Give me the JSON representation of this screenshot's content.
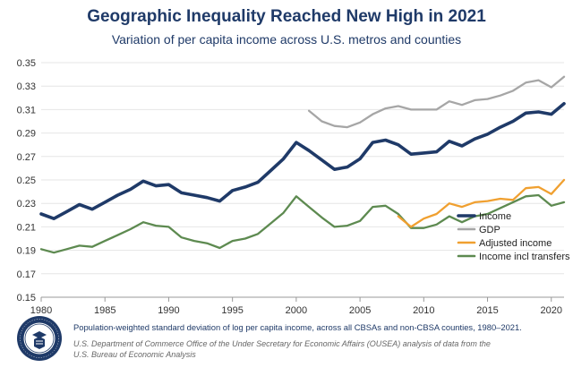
{
  "chart_data": {
    "type": "line",
    "title": "Geographic Inequality Reached New High in 2021",
    "subtitle": "Variation of per capita income across U.S. metros and counties",
    "xlabel": "",
    "ylabel": "",
    "xlim": [
      1980,
      2021
    ],
    "ylim": [
      0.15,
      0.35
    ],
    "x_ticks": [
      "1980",
      "1985",
      "1990",
      "1995",
      "2000",
      "2005",
      "2010",
      "2015",
      "2020"
    ],
    "x_tick_values": [
      1980,
      1985,
      1990,
      1995,
      2000,
      2005,
      2010,
      2015,
      2020
    ],
    "y_ticks": [
      "0.15",
      "0.17",
      "0.19",
      "0.21",
      "0.23",
      "0.25",
      "0.27",
      "0.29",
      "0.31",
      "0.33",
      "0.35"
    ],
    "y_tick_values": [
      0.15,
      0.17,
      0.19,
      0.21,
      0.23,
      0.25,
      0.27,
      0.29,
      0.31,
      0.33,
      0.35
    ],
    "grid": true,
    "legend_position": "lower-right",
    "series": [
      {
        "name": "Income",
        "color": "#1f3a68",
        "x": [
          1980,
          1981,
          1982,
          1983,
          1984,
          1985,
          1986,
          1987,
          1988,
          1989,
          1990,
          1991,
          1992,
          1993,
          1994,
          1995,
          1996,
          1997,
          1998,
          1999,
          2000,
          2001,
          2002,
          2003,
          2004,
          2005,
          2006,
          2007,
          2008,
          2009,
          2010,
          2011,
          2012,
          2013,
          2014,
          2015,
          2016,
          2017,
          2018,
          2019,
          2020,
          2021
        ],
        "values": [
          0.221,
          0.217,
          0.223,
          0.229,
          0.225,
          0.231,
          0.237,
          0.242,
          0.249,
          0.245,
          0.246,
          0.239,
          0.237,
          0.235,
          0.232,
          0.241,
          0.244,
          0.248,
          0.258,
          0.268,
          0.282,
          0.275,
          0.267,
          0.259,
          0.261,
          0.268,
          0.282,
          0.284,
          0.28,
          0.272,
          0.273,
          0.274,
          0.283,
          0.279,
          0.285,
          0.289,
          0.295,
          0.3,
          0.307,
          0.308,
          0.306,
          0.315
        ]
      },
      {
        "name": "GDP",
        "color": "#a6a6a6",
        "x": [
          2001,
          2002,
          2003,
          2004,
          2005,
          2006,
          2007,
          2008,
          2009,
          2010,
          2011,
          2012,
          2013,
          2014,
          2015,
          2016,
          2017,
          2018,
          2019,
          2020,
          2021
        ],
        "values": [
          0.309,
          0.3,
          0.296,
          0.295,
          0.299,
          0.306,
          0.311,
          0.313,
          0.31,
          0.31,
          0.31,
          0.317,
          0.314,
          0.318,
          0.319,
          0.322,
          0.326,
          0.333,
          0.335,
          0.329,
          0.338
        ]
      },
      {
        "name": "Adjusted income",
        "color": "#f0a030",
        "x": [
          2008,
          2009,
          2010,
          2011,
          2012,
          2013,
          2014,
          2015,
          2016,
          2017,
          2018,
          2019,
          2020,
          2021
        ],
        "values": [
          0.219,
          0.21,
          0.217,
          0.221,
          0.23,
          0.227,
          0.231,
          0.232,
          0.234,
          0.233,
          0.243,
          0.244,
          0.238,
          0.25
        ]
      },
      {
        "name": "Income incl transfers",
        "color": "#5d8a50",
        "x": [
          1980,
          1981,
          1982,
          1983,
          1984,
          1985,
          1986,
          1987,
          1988,
          1989,
          1990,
          1991,
          1992,
          1993,
          1994,
          1995,
          1996,
          1997,
          1998,
          1999,
          2000,
          2001,
          2002,
          2003,
          2004,
          2005,
          2006,
          2007,
          2008,
          2009,
          2010,
          2011,
          2012,
          2013,
          2014,
          2015,
          2016,
          2017,
          2018,
          2019,
          2020,
          2021
        ],
        "values": [
          0.191,
          0.188,
          0.191,
          0.194,
          0.193,
          0.198,
          0.203,
          0.208,
          0.214,
          0.211,
          0.21,
          0.201,
          0.198,
          0.196,
          0.192,
          0.198,
          0.2,
          0.204,
          0.213,
          0.222,
          0.236,
          0.227,
          0.218,
          0.21,
          0.211,
          0.215,
          0.227,
          0.228,
          0.221,
          0.209,
          0.209,
          0.212,
          0.219,
          0.214,
          0.219,
          0.221,
          0.226,
          0.231,
          0.236,
          0.237,
          0.228,
          0.231
        ]
      }
    ]
  },
  "footnote": "Population-weighted standard deviation of log per capita income, across all CBSAs and non-CBSA counties, 1980–2021.",
  "source_line1": "U.S. Department of Commerce Office of the Under Secretary for Economic Affairs (OUSEA) analysis of data from the",
  "source_line2": "U.S. Bureau of Economic Analysis",
  "seal_text": "DEPARTMENT OF COMMERCE · UNITED STATES OF AMERICA"
}
